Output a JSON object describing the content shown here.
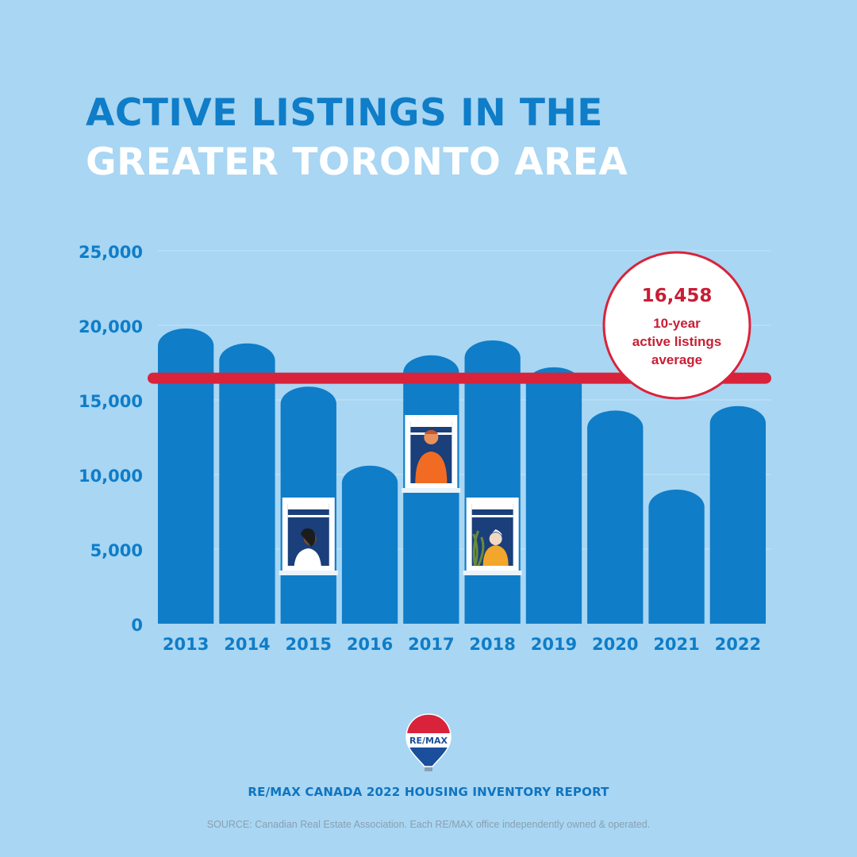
{
  "header": {
    "title_line1": "ACTIVE LISTINGS IN THE",
    "title_line2": "GREATER TORONTO AREA"
  },
  "chart_data": {
    "type": "bar",
    "title": "ACTIVE LISTINGS IN THE GREATER TORONTO AREA",
    "categories": [
      "2013",
      "2014",
      "2015",
      "2016",
      "2017",
      "2018",
      "2019",
      "2020",
      "2021",
      "2022"
    ],
    "values": [
      20500,
      19500,
      16600,
      11300,
      18700,
      19700,
      17900,
      15000,
      9700,
      15300
    ],
    "ylim": [
      0,
      25000
    ],
    "yticks": [
      "0",
      "5,000",
      "10,000",
      "15,000",
      "20,000",
      "25,000"
    ],
    "ytick_values": [
      0,
      5000,
      10000,
      15000,
      20000,
      25000
    ],
    "grid": true,
    "average": {
      "value": 16458,
      "value_label": "16,458",
      "label_lines": [
        "10-year",
        "active listings",
        "average"
      ]
    },
    "colors": {
      "bar": "#0f7dc8",
      "average_line": "#d9233a",
      "background": "#a8d6f3"
    }
  },
  "logo": {
    "text": "RE/MAX"
  },
  "footer": {
    "report": "RE/MAX CANADA 2022 HOUSING INVENTORY REPORT",
    "source": "SOURCE: Canadian Real Estate Association. Each RE/MAX office independently owned & operated."
  }
}
